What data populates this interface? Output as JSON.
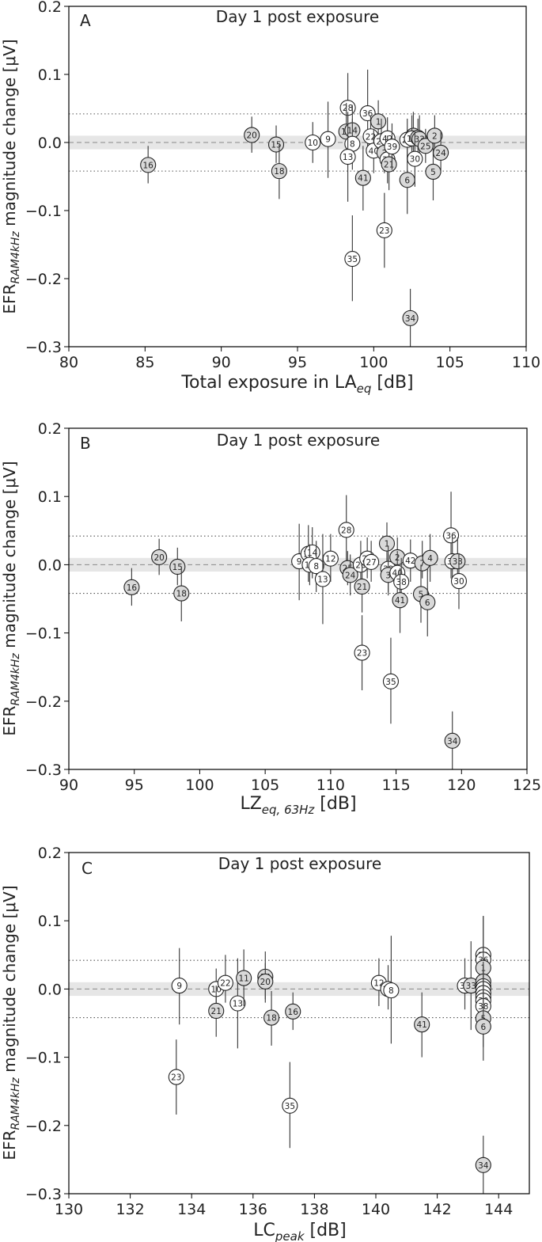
{
  "chart_data": [
    {
      "type": "scatter",
      "panel_label": "A",
      "title": "Day 1 post exposure",
      "xlabel": "Total exposure in LA",
      "xlabel_sub": "eq",
      "xlabel_suffix": " [dB]",
      "ylabel": "EFR",
      "ylabel_sub": "RAM4kHz",
      "ylabel_suffix": " magnitude change [μV]",
      "xlim": [
        80,
        110
      ],
      "ylim": [
        -0.3,
        0.2
      ],
      "xticks": [
        80,
        85,
        90,
        95,
        100,
        105,
        110
      ],
      "yticks": [
        -0.3,
        -0.2,
        -0.1,
        0.0,
        0.1,
        0.2
      ],
      "ytick_labels": [
        "−0.3",
        "−0.2",
        "−0.1",
        "0.0",
        "0.1",
        "0.2"
      ],
      "ref_dashed": 0.0,
      "ref_band": [
        -0.01,
        0.01
      ],
      "ref_dotted": [
        0.042,
        -0.042
      ],
      "points": [
        {
          "id": "16",
          "x": 85.2,
          "y": -0.033,
          "lo": -0.06,
          "hi": -0.005,
          "fill": "grey"
        },
        {
          "id": "20",
          "x": 92.0,
          "y": 0.011,
          "lo": -0.015,
          "hi": 0.038,
          "fill": "grey"
        },
        {
          "id": "15",
          "x": 93.6,
          "y": -0.003,
          "lo": -0.03,
          "hi": 0.025,
          "fill": "grey"
        },
        {
          "id": "18",
          "x": 93.8,
          "y": -0.042,
          "lo": -0.083,
          "hi": -0.003,
          "fill": "grey"
        },
        {
          "id": "10",
          "x": 96.0,
          "y": 0.0,
          "lo": -0.03,
          "hi": 0.03,
          "fill": "white"
        },
        {
          "id": "9",
          "x": 97.0,
          "y": 0.005,
          "lo": -0.052,
          "hi": 0.06,
          "fill": "white"
        },
        {
          "id": "28",
          "x": 98.3,
          "y": 0.051,
          "lo": 0.0,
          "hi": 0.102,
          "fill": "white"
        },
        {
          "id": "11",
          "x": 98.2,
          "y": 0.016,
          "lo": -0.025,
          "hi": 0.058,
          "fill": "grey"
        },
        {
          "id": "14",
          "x": 98.6,
          "y": 0.018,
          "lo": -0.02,
          "hi": 0.055,
          "fill": "grey"
        },
        {
          "id": "8",
          "x": 98.6,
          "y": -0.002,
          "lo": -0.04,
          "hi": 0.035,
          "fill": "white"
        },
        {
          "id": "13",
          "x": 98.3,
          "y": -0.021,
          "lo": -0.087,
          "hi": 0.045,
          "fill": "white"
        },
        {
          "id": "35",
          "x": 98.6,
          "y": -0.171,
          "lo": -0.233,
          "hi": -0.107,
          "fill": "white"
        },
        {
          "id": "41",
          "x": 99.3,
          "y": -0.052,
          "lo": -0.1,
          "hi": -0.005,
          "fill": "grey"
        },
        {
          "id": "36",
          "x": 99.6,
          "y": 0.043,
          "lo": -0.02,
          "hi": 0.107,
          "fill": "white"
        },
        {
          "id": "22",
          "x": 99.8,
          "y": 0.009,
          "lo": -0.02,
          "hi": 0.04,
          "fill": "white"
        },
        {
          "id": "40",
          "x": 100.0,
          "y": -0.012,
          "lo": -0.045,
          "hi": 0.02,
          "fill": "white"
        },
        {
          "id": "1",
          "x": 100.3,
          "y": 0.031,
          "lo": 0.0,
          "hi": 0.062,
          "fill": "grey"
        },
        {
          "id": "26",
          "x": 100.5,
          "y": 0.002,
          "lo": -0.03,
          "hi": 0.035,
          "fill": "white"
        },
        {
          "id": "3",
          "x": 100.7,
          "y": -0.015,
          "lo": -0.045,
          "hi": 0.015,
          "fill": "grey"
        },
        {
          "id": "42",
          "x": 100.9,
          "y": 0.006,
          "lo": -0.025,
          "hi": 0.037,
          "fill": "white"
        },
        {
          "id": "38",
          "x": 100.9,
          "y": -0.025,
          "lo": -0.06,
          "hi": 0.01,
          "fill": "white"
        },
        {
          "id": "21",
          "x": 101.0,
          "y": -0.032,
          "lo": -0.07,
          "hi": 0.005,
          "fill": "grey"
        },
        {
          "id": "39",
          "x": 101.2,
          "y": -0.006,
          "lo": -0.04,
          "hi": 0.028,
          "fill": "white"
        },
        {
          "id": "23",
          "x": 100.7,
          "y": -0.129,
          "lo": -0.184,
          "hi": -0.074,
          "fill": "white"
        },
        {
          "id": "6",
          "x": 102.2,
          "y": -0.055,
          "lo": -0.105,
          "hi": -0.005,
          "fill": "grey"
        },
        {
          "id": "27",
          "x": 102.2,
          "y": 0.004,
          "lo": -0.025,
          "hi": 0.035,
          "fill": "white"
        },
        {
          "id": "4",
          "x": 102.6,
          "y": 0.01,
          "lo": -0.025,
          "hi": 0.045,
          "fill": "grey"
        },
        {
          "id": "12",
          "x": 102.5,
          "y": 0.006,
          "lo": -0.03,
          "hi": 0.04,
          "fill": "white"
        },
        {
          "id": "7",
          "x": 102.9,
          "y": 0.007,
          "lo": -0.02,
          "hi": 0.035,
          "fill": "grey"
        },
        {
          "id": "33",
          "x": 103.0,
          "y": 0.005,
          "lo": -0.03,
          "hi": 0.04,
          "fill": "grey"
        },
        {
          "id": "30",
          "x": 102.7,
          "y": -0.024,
          "lo": -0.065,
          "hi": 0.017,
          "fill": "white"
        },
        {
          "id": "34",
          "x": 102.4,
          "y": -0.258,
          "lo": -0.3,
          "hi": -0.215,
          "fill": "grey"
        },
        {
          "id": "25",
          "x": 103.4,
          "y": -0.005,
          "lo": -0.03,
          "hi": 0.02,
          "fill": "grey"
        },
        {
          "id": "5",
          "x": 103.9,
          "y": -0.043,
          "lo": -0.085,
          "hi": 0.0,
          "fill": "grey"
        },
        {
          "id": "2",
          "x": 104.0,
          "y": 0.01,
          "lo": -0.02,
          "hi": 0.04,
          "fill": "grey"
        },
        {
          "id": "24",
          "x": 104.4,
          "y": -0.015,
          "lo": -0.045,
          "hi": 0.015,
          "fill": "grey"
        }
      ]
    },
    {
      "type": "scatter",
      "panel_label": "B",
      "title": "Day 1 post exposure",
      "xlabel": "LZ",
      "xlabel_sub": "eq, 63Hz",
      "xlabel_suffix": " [dB]",
      "ylabel": "EFR",
      "ylabel_sub": "RAM4kHz",
      "ylabel_suffix": " magnitude change [μV]",
      "xlim": [
        90,
        125
      ],
      "ylim": [
        -0.3,
        0.2
      ],
      "xticks": [
        90,
        95,
        100,
        105,
        110,
        115,
        120,
        125
      ],
      "yticks": [
        -0.3,
        -0.2,
        -0.1,
        0.0,
        0.1,
        0.2
      ],
      "ytick_labels": [
        "−0.3",
        "−0.2",
        "−0.1",
        "0.0",
        "0.1",
        "0.2"
      ],
      "ref_dashed": 0.0,
      "ref_band": [
        -0.01,
        0.01
      ],
      "ref_dotted": [
        0.042,
        -0.042
      ],
      "points": [
        {
          "id": "16",
          "x": 94.8,
          "y": -0.033,
          "lo": -0.06,
          "hi": -0.005,
          "fill": "grey"
        },
        {
          "id": "20",
          "x": 96.9,
          "y": 0.011,
          "lo": -0.015,
          "hi": 0.038,
          "fill": "grey"
        },
        {
          "id": "15",
          "x": 98.3,
          "y": -0.003,
          "lo": -0.03,
          "hi": 0.025,
          "fill": "grey"
        },
        {
          "id": "18",
          "x": 98.6,
          "y": -0.042,
          "lo": -0.083,
          "hi": -0.003,
          "fill": "grey"
        },
        {
          "id": "9",
          "x": 107.6,
          "y": 0.005,
          "lo": -0.052,
          "hi": 0.06,
          "fill": "white"
        },
        {
          "id": "11",
          "x": 108.3,
          "y": 0.016,
          "lo": -0.025,
          "hi": 0.058,
          "fill": "white"
        },
        {
          "id": "14",
          "x": 108.6,
          "y": 0.018,
          "lo": -0.02,
          "hi": 0.055,
          "fill": "white"
        },
        {
          "id": "10",
          "x": 108.4,
          "y": 0.0,
          "lo": -0.03,
          "hi": 0.03,
          "fill": "white"
        },
        {
          "id": "8",
          "x": 108.9,
          "y": -0.002,
          "lo": -0.04,
          "hi": 0.035,
          "fill": "white"
        },
        {
          "id": "13",
          "x": 109.4,
          "y": -0.021,
          "lo": -0.087,
          "hi": 0.045,
          "fill": "white"
        },
        {
          "id": "12",
          "x": 110.0,
          "y": 0.009,
          "lo": -0.025,
          "hi": 0.045,
          "fill": "white"
        },
        {
          "id": "28",
          "x": 111.2,
          "y": 0.051,
          "lo": 0.0,
          "hi": 0.102,
          "fill": "white"
        },
        {
          "id": "25",
          "x": 111.3,
          "y": -0.005,
          "lo": -0.03,
          "hi": 0.02,
          "fill": "grey"
        },
        {
          "id": "24",
          "x": 111.5,
          "y": -0.015,
          "lo": -0.045,
          "hi": 0.015,
          "fill": "grey"
        },
        {
          "id": "26",
          "x": 112.3,
          "y": 0.0,
          "lo": -0.03,
          "hi": 0.035,
          "fill": "white"
        },
        {
          "id": "21",
          "x": 112.4,
          "y": -0.032,
          "lo": -0.07,
          "hi": 0.005,
          "fill": "grey"
        },
        {
          "id": "22",
          "x": 112.8,
          "y": 0.009,
          "lo": -0.02,
          "hi": 0.04,
          "fill": "white"
        },
        {
          "id": "27",
          "x": 113.1,
          "y": 0.004,
          "lo": -0.025,
          "hi": 0.035,
          "fill": "white"
        },
        {
          "id": "23",
          "x": 112.4,
          "y": -0.129,
          "lo": -0.184,
          "hi": -0.074,
          "fill": "white"
        },
        {
          "id": "1",
          "x": 114.3,
          "y": 0.031,
          "lo": 0.0,
          "hi": 0.062,
          "fill": "grey"
        },
        {
          "id": "39",
          "x": 114.4,
          "y": -0.006,
          "lo": -0.04,
          "hi": 0.028,
          "fill": "white"
        },
        {
          "id": "3",
          "x": 114.4,
          "y": -0.015,
          "lo": -0.045,
          "hi": 0.015,
          "fill": "grey"
        },
        {
          "id": "35",
          "x": 114.6,
          "y": -0.171,
          "lo": -0.233,
          "hi": -0.107,
          "fill": "white"
        },
        {
          "id": "2",
          "x": 115.1,
          "y": 0.011,
          "lo": -0.02,
          "hi": 0.04,
          "fill": "grey"
        },
        {
          "id": "40",
          "x": 115.1,
          "y": -0.012,
          "lo": -0.045,
          "hi": 0.02,
          "fill": "white"
        },
        {
          "id": "38",
          "x": 115.4,
          "y": -0.025,
          "lo": -0.06,
          "hi": 0.01,
          "fill": "white"
        },
        {
          "id": "41",
          "x": 115.3,
          "y": -0.052,
          "lo": -0.1,
          "hi": -0.005,
          "fill": "grey"
        },
        {
          "id": "42",
          "x": 116.1,
          "y": 0.006,
          "lo": -0.025,
          "hi": 0.037,
          "fill": "white"
        },
        {
          "id": "7",
          "x": 117.0,
          "y": 0.002,
          "lo": -0.02,
          "hi": 0.035,
          "fill": "grey"
        },
        {
          "id": "4",
          "x": 117.6,
          "y": 0.01,
          "lo": -0.025,
          "hi": 0.045,
          "fill": "grey"
        },
        {
          "id": "5",
          "x": 116.9,
          "y": -0.043,
          "lo": -0.085,
          "hi": 0.0,
          "fill": "grey"
        },
        {
          "id": "6",
          "x": 117.4,
          "y": -0.055,
          "lo": -0.105,
          "hi": -0.005,
          "fill": "grey"
        },
        {
          "id": "36",
          "x": 119.2,
          "y": 0.043,
          "lo": -0.02,
          "hi": 0.107,
          "fill": "white"
        },
        {
          "id": "37",
          "x": 119.3,
          "y": 0.005,
          "lo": -0.03,
          "hi": 0.04,
          "fill": "white"
        },
        {
          "id": "33",
          "x": 119.7,
          "y": 0.005,
          "lo": -0.03,
          "hi": 0.04,
          "fill": "grey"
        },
        {
          "id": "30",
          "x": 119.8,
          "y": -0.024,
          "lo": -0.065,
          "hi": 0.017,
          "fill": "white"
        },
        {
          "id": "34",
          "x": 119.3,
          "y": -0.258,
          "lo": -0.3,
          "hi": -0.215,
          "fill": "grey"
        }
      ]
    },
    {
      "type": "scatter",
      "panel_label": "C",
      "title": "Day 1 post exposure",
      "xlabel": "LC",
      "xlabel_sub": "peak",
      "xlabel_suffix": " [dB]",
      "ylabel": "EFR",
      "ylabel_sub": "RAM4kHz",
      "ylabel_suffix": " magnitude change [μV]",
      "xlim": [
        130,
        145
      ],
      "ylim": [
        -0.3,
        0.2
      ],
      "xticks": [
        130,
        132,
        134,
        136,
        138,
        140,
        142,
        144
      ],
      "yticks": [
        -0.3,
        -0.2,
        -0.1,
        0.0,
        0.1,
        0.2
      ],
      "ytick_labels": [
        "−0.3",
        "−0.2",
        "−0.1",
        "0.0",
        "0.1",
        "0.2"
      ],
      "ref_dashed": 0.0,
      "ref_band": [
        -0.01,
        0.01
      ],
      "ref_dotted": [
        0.042,
        -0.042
      ],
      "points": [
        {
          "id": "9",
          "x": 133.6,
          "y": 0.005,
          "lo": -0.052,
          "hi": 0.06,
          "fill": "white"
        },
        {
          "id": "23",
          "x": 133.5,
          "y": -0.129,
          "lo": -0.184,
          "hi": -0.074,
          "fill": "white"
        },
        {
          "id": "10",
          "x": 134.8,
          "y": 0.0,
          "lo": -0.03,
          "hi": 0.03,
          "fill": "white"
        },
        {
          "id": "21",
          "x": 134.8,
          "y": -0.032,
          "lo": -0.07,
          "hi": 0.005,
          "fill": "grey"
        },
        {
          "id": "22",
          "x": 135.1,
          "y": 0.009,
          "lo": -0.02,
          "hi": 0.05,
          "fill": "white"
        },
        {
          "id": "13",
          "x": 135.5,
          "y": -0.021,
          "lo": -0.087,
          "hi": 0.045,
          "fill": "white"
        },
        {
          "id": "11",
          "x": 135.7,
          "y": 0.016,
          "lo": -0.025,
          "hi": 0.058,
          "fill": "grey"
        },
        {
          "id": "14",
          "x": 136.4,
          "y": 0.018,
          "lo": -0.02,
          "hi": 0.055,
          "fill": "grey"
        },
        {
          "id": "20",
          "x": 136.4,
          "y": 0.011,
          "lo": -0.015,
          "hi": 0.038,
          "fill": "grey"
        },
        {
          "id": "18",
          "x": 136.6,
          "y": -0.042,
          "lo": -0.083,
          "hi": -0.003,
          "fill": "grey"
        },
        {
          "id": "16",
          "x": 137.3,
          "y": -0.033,
          "lo": -0.06,
          "hi": -0.005,
          "fill": "grey"
        },
        {
          "id": "35",
          "x": 137.2,
          "y": -0.171,
          "lo": -0.233,
          "hi": -0.107,
          "fill": "white"
        },
        {
          "id": "12",
          "x": 140.1,
          "y": 0.009,
          "lo": -0.025,
          "hi": 0.045,
          "fill": "white"
        },
        {
          "id": "28",
          "x": 140.4,
          "y": 0.0,
          "lo": -0.03,
          "hi": 0.035,
          "fill": "white"
        },
        {
          "id": "8",
          "x": 140.5,
          "y": -0.002,
          "lo": -0.08,
          "hi": 0.078,
          "fill": "white"
        },
        {
          "id": "41",
          "x": 141.5,
          "y": -0.052,
          "lo": -0.1,
          "hi": -0.005,
          "fill": "grey"
        },
        {
          "id": "31",
          "x": 142.9,
          "y": 0.005,
          "lo": -0.03,
          "hi": 0.045,
          "fill": "white"
        },
        {
          "id": "33",
          "x": 143.1,
          "y": 0.005,
          "lo": -0.06,
          "hi": 0.07,
          "fill": "grey"
        },
        {
          "id": "29",
          "x": 143.5,
          "y": 0.05,
          "lo": 0.0,
          "hi": 0.107,
          "fill": "white"
        },
        {
          "id": "36",
          "x": 143.5,
          "y": 0.043,
          "lo": -0.02,
          "hi": 0.107,
          "fill": "white"
        },
        {
          "id": "1",
          "x": 143.5,
          "y": 0.031,
          "lo": 0.0,
          "hi": 0.062,
          "fill": "grey"
        },
        {
          "id": "2",
          "x": 143.5,
          "y": 0.011,
          "lo": -0.02,
          "hi": 0.04,
          "fill": "grey"
        },
        {
          "id": "27",
          "x": 143.5,
          "y": 0.004,
          "lo": -0.025,
          "hi": 0.035,
          "fill": "white"
        },
        {
          "id": "26",
          "x": 143.5,
          "y": 0.0,
          "lo": -0.03,
          "hi": 0.035,
          "fill": "white"
        },
        {
          "id": "39",
          "x": 143.5,
          "y": -0.006,
          "lo": -0.04,
          "hi": 0.028,
          "fill": "white"
        },
        {
          "id": "40",
          "x": 143.5,
          "y": -0.012,
          "lo": -0.045,
          "hi": 0.02,
          "fill": "white"
        },
        {
          "id": "30",
          "x": 143.5,
          "y": -0.017,
          "lo": -0.05,
          "hi": 0.017,
          "fill": "white"
        },
        {
          "id": "38",
          "x": 143.5,
          "y": -0.025,
          "lo": -0.06,
          "hi": 0.01,
          "fill": "white"
        },
        {
          "id": "5",
          "x": 143.5,
          "y": -0.043,
          "lo": -0.085,
          "hi": 0.0,
          "fill": "grey"
        },
        {
          "id": "6",
          "x": 143.5,
          "y": -0.055,
          "lo": -0.105,
          "hi": -0.005,
          "fill": "grey"
        },
        {
          "id": "34",
          "x": 143.5,
          "y": -0.258,
          "lo": -0.3,
          "hi": -0.215,
          "fill": "grey"
        }
      ]
    }
  ]
}
